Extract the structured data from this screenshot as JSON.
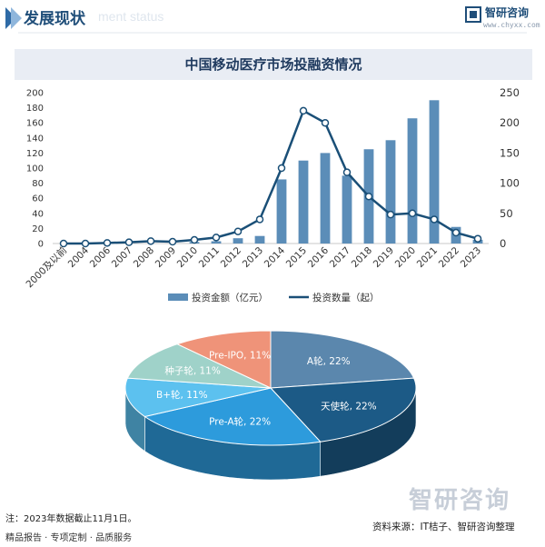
{
  "header": {
    "title": "发展现状",
    "ghost_text": "ment status",
    "logo_text": "智研咨询",
    "logo_url": "www.chyxx.com"
  },
  "chart_title": "中国移动医疗市场投融资情况",
  "note": "注：2023年数据截止11月1日。",
  "footer_left": "精品报告 · 专项定制 · 品质服务",
  "footer_right": "资料来源：IT桔子、智研咨询整理",
  "watermark": "智研咨询",
  "colors": {
    "bar": "#5b8db8",
    "line": "#1a4f77",
    "pie_a": "#5b87ad",
    "pie_angel": "#1c5a86",
    "pie_pre_a": "#2d9bdc",
    "pie_b_plus": "#5cc1ef",
    "pie_seed": "#9fd2c9",
    "pie_pre_ipo": "#ef9379"
  },
  "chart_data": [
    {
      "type": "bar",
      "combo_with": "line",
      "categories": [
        "2000及以前",
        "2004",
        "2006",
        "2007",
        "2008",
        "2009",
        "2010",
        "2011",
        "2012",
        "2013",
        "2014",
        "2015",
        "2016",
        "2017",
        "2018",
        "2019",
        "2020",
        "2021",
        "2022",
        "2023"
      ],
      "series": [
        {
          "name": "投资金额（亿元）",
          "type": "bar",
          "axis": "left",
          "values": [
            0,
            0,
            0,
            0,
            0,
            0,
            2,
            3,
            7,
            10,
            85,
            110,
            120,
            90,
            125,
            137,
            166,
            190,
            22,
            5
          ]
        },
        {
          "name": "投资数量（起）",
          "type": "line",
          "axis": "right",
          "values": [
            0,
            0,
            1,
            2,
            4,
            3,
            6,
            10,
            20,
            40,
            125,
            220,
            200,
            118,
            78,
            48,
            50,
            40,
            18,
            8
          ]
        }
      ],
      "yticks_left": [
        0,
        20,
        40,
        60,
        80,
        100,
        120,
        140,
        160,
        180,
        200
      ],
      "yticks_right": [
        0,
        50,
        100,
        150,
        200,
        250
      ],
      "ylim_left": [
        0,
        200
      ],
      "ylim_right": [
        0,
        250
      ],
      "legend_position": "bottom"
    },
    {
      "type": "pie",
      "style": "3d",
      "slices": [
        {
          "label": "A轮",
          "value": 22,
          "display": "A轮, 22%"
        },
        {
          "label": "天使轮",
          "value": 22,
          "display": "天使轮, 22%"
        },
        {
          "label": "Pre-A轮",
          "value": 22,
          "display": "Pre-A轮, 22%"
        },
        {
          "label": "B+轮",
          "value": 11,
          "display": "B+轮, 11%"
        },
        {
          "label": "种子轮",
          "value": 11,
          "display": "种子轮, 11%"
        },
        {
          "label": "Pre-IPO",
          "value": 11,
          "display": "Pre-IPO, 11%"
        }
      ]
    }
  ]
}
